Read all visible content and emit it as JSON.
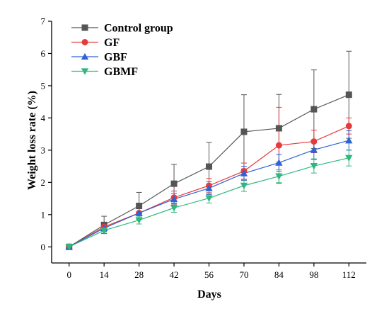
{
  "chart_data": {
    "type": "line",
    "xlabel": "Days",
    "ylabel": "Weight loss rate (%)",
    "x": [
      0,
      14,
      28,
      42,
      56,
      70,
      84,
      98,
      112
    ],
    "xlim": [
      -7,
      119
    ],
    "ylim": [
      -0.5,
      7
    ],
    "yticks": [
      0,
      1,
      2,
      3,
      4,
      5,
      6,
      7
    ],
    "legend_position": "top-left",
    "series": [
      {
        "name": "Control group",
        "color": "#555555",
        "marker": "square",
        "values": [
          0,
          0.68,
          1.27,
          1.96,
          2.49,
          3.57,
          3.68,
          4.27,
          4.72
        ],
        "errors": [
          0.02,
          0.27,
          0.42,
          0.6,
          0.75,
          1.15,
          1.05,
          1.22,
          1.35
        ]
      },
      {
        "name": "GF",
        "color": "#e63b3b",
        "marker": "circle",
        "values": [
          0,
          0.62,
          1.05,
          1.53,
          1.9,
          2.35,
          3.15,
          3.27,
          3.75
        ],
        "errors": [
          0.02,
          0.12,
          0.18,
          0.2,
          0.22,
          0.25,
          1.18,
          0.35,
          0.25
        ]
      },
      {
        "name": "GBF",
        "color": "#2e63d6",
        "marker": "triangle-up",
        "values": [
          0,
          0.58,
          1.05,
          1.48,
          1.82,
          2.28,
          2.61,
          3.01,
          3.3
        ],
        "errors": [
          0.02,
          0.1,
          0.15,
          0.18,
          0.2,
          0.22,
          0.26,
          0.3,
          0.3
        ]
      },
      {
        "name": "GBMF",
        "color": "#2fb87e",
        "marker": "triangle-down",
        "values": [
          0,
          0.51,
          0.83,
          1.21,
          1.51,
          1.9,
          2.19,
          2.51,
          2.76
        ],
        "errors": [
          0.02,
          0.08,
          0.12,
          0.14,
          0.15,
          0.18,
          0.2,
          0.22,
          0.25
        ]
      }
    ]
  }
}
